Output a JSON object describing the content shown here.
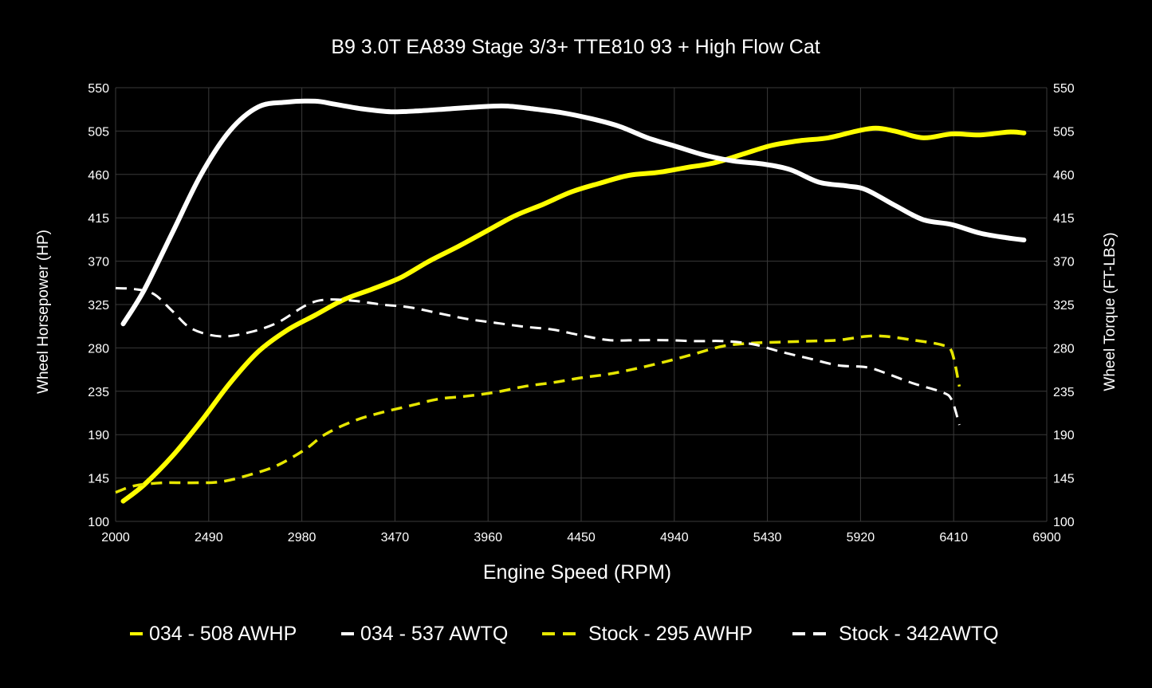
{
  "chart_data": {
    "type": "line",
    "title": "B9 3.0T EA839 Stage 3/3+ TTE810 93 + High Flow Cat",
    "xlabel": "Engine Speed (RPM)",
    "ylabel_left": "Wheel Horsepower (HP)",
    "ylabel_right": "Wheel Torque (FT-LBS)",
    "xlim": [
      2000,
      6900
    ],
    "ylim": [
      100,
      550
    ],
    "x_ticks": [
      "2000",
      "2490",
      "2980",
      "3470",
      "3960",
      "4450",
      "4940",
      "5430",
      "5920",
      "6410",
      "6900"
    ],
    "y_ticks": [
      "100",
      "145",
      "190",
      "235",
      "280",
      "325",
      "370",
      "415",
      "460",
      "505",
      "550"
    ],
    "grid": true,
    "legend_position": "bottom",
    "series": [
      {
        "name": "034 - 508 AWHP",
        "color": "#ffff00",
        "style": "solid",
        "x": [
          2040,
          2150,
          2300,
          2450,
          2600,
          2750,
          2900,
          3050,
          3200,
          3350,
          3500,
          3650,
          3800,
          3950,
          4100,
          4250,
          4400,
          4550,
          4700,
          4850,
          5000,
          5150,
          5300,
          5450,
          5600,
          5750,
          5900,
          6000,
          6100,
          6250,
          6400,
          6550,
          6700,
          6780
        ],
        "y": [
          121,
          138,
          168,
          204,
          243,
          276,
          298,
          314,
          330,
          341,
          353,
          370,
          385,
          401,
          417,
          429,
          442,
          451,
          459,
          462,
          467,
          472,
          481,
          490,
          495,
          498,
          505,
          508,
          505,
          498,
          502,
          501,
          504,
          503
        ]
      },
      {
        "name": "034 - 537 AWTQ",
        "color": "#ffffff",
        "style": "solid",
        "x": [
          2040,
          2150,
          2300,
          2450,
          2600,
          2750,
          2900,
          3050,
          3150,
          3300,
          3450,
          3600,
          3750,
          3900,
          4050,
          4200,
          4350,
          4500,
          4650,
          4800,
          4950,
          5100,
          5250,
          5400,
          5550,
          5700,
          5850,
          5950,
          6100,
          6250,
          6400,
          6550,
          6700,
          6780
        ],
        "y": [
          305,
          340,
          400,
          460,
          505,
          530,
          535,
          536,
          533,
          528,
          525,
          526,
          528,
          530,
          531,
          528,
          524,
          518,
          510,
          498,
          489,
          480,
          474,
          471,
          465,
          452,
          448,
          444,
          428,
          413,
          408,
          399,
          394,
          392
        ]
      },
      {
        "name": "Stock - 295 AWHP",
        "color": "#e6e600",
        "style": "dashed",
        "x": [
          2000,
          2100,
          2250,
          2400,
          2550,
          2700,
          2850,
          3000,
          3100,
          3250,
          3400,
          3550,
          3700,
          3850,
          4000,
          4150,
          4300,
          4450,
          4600,
          4750,
          4900,
          5050,
          5200,
          5350,
          5500,
          5650,
          5800,
          5950,
          6050,
          6200,
          6350,
          6400,
          6440
        ],
        "y": [
          130,
          137,
          140,
          140,
          141,
          148,
          158,
          175,
          190,
          204,
          213,
          220,
          227,
          230,
          234,
          240,
          244,
          249,
          253,
          259,
          266,
          274,
          282,
          285,
          286,
          287,
          288,
          292,
          292,
          288,
          283,
          276,
          240
        ]
      },
      {
        "name": "Stock - 342AWTQ",
        "color": "#ffffff",
        "style": "dashed",
        "x": [
          2000,
          2100,
          2200,
          2300,
          2400,
          2550,
          2700,
          2850,
          3000,
          3100,
          3250,
          3400,
          3550,
          3700,
          3850,
          4000,
          4150,
          4300,
          4450,
          4600,
          4750,
          4900,
          5050,
          5200,
          5350,
          5500,
          5650,
          5800,
          5950,
          6050,
          6200,
          6350,
          6400,
          6440
        ],
        "y": [
          342,
          341,
          336,
          318,
          300,
          292,
          296,
          306,
          324,
          330,
          329,
          325,
          322,
          316,
          310,
          306,
          302,
          299,
          293,
          288,
          288,
          288,
          287,
          287,
          284,
          276,
          269,
          262,
          260,
          254,
          243,
          234,
          226,
          200
        ]
      }
    ]
  }
}
